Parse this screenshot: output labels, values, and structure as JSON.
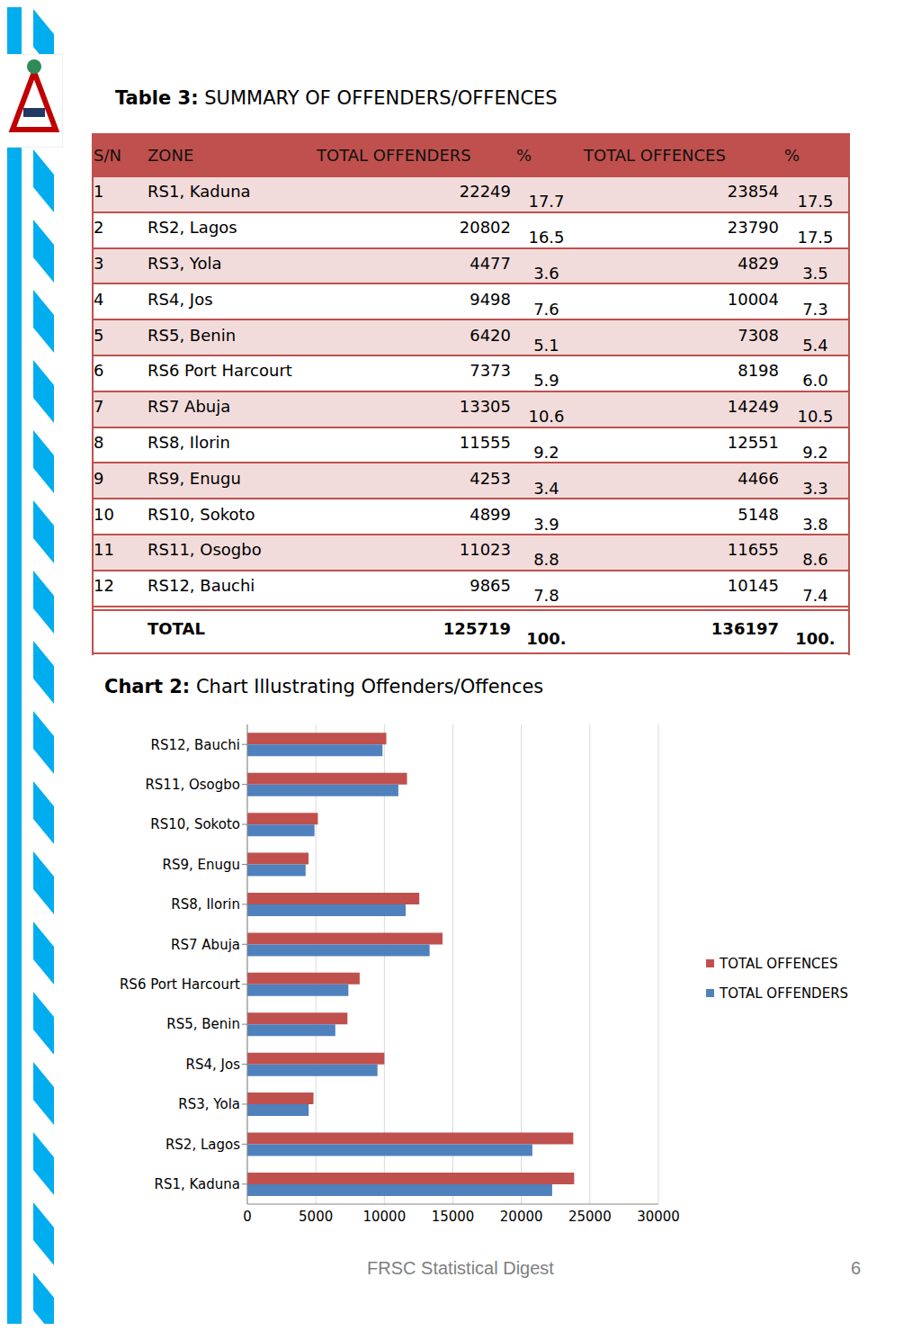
{
  "header": {
    "label": "Table 3:",
    "title": "SUMMARY OF OFFENDERS/OFFENCES"
  },
  "table": {
    "columns": [
      "S/N",
      "ZONE",
      "TOTAL OFFENDERS",
      "%",
      "TOTAL OFFENCES",
      "%"
    ],
    "rows": [
      [
        1,
        "RS1, Kaduna",
        22249,
        "17.7",
        23854,
        "17.5"
      ],
      [
        2,
        "RS2, Lagos",
        20802,
        "16.5",
        23790,
        "17.5"
      ],
      [
        3,
        "RS3, Yola",
        4477,
        "3.6",
        4829,
        "3.5"
      ],
      [
        4,
        "RS4, Jos",
        9498,
        "7.6",
        10004,
        "7.3"
      ],
      [
        5,
        "RS5, Benin",
        6420,
        "5.1",
        7308,
        "5.4"
      ],
      [
        6,
        "RS6 Port Harcourt",
        7373,
        "5.9",
        8198,
        "6.0"
      ],
      [
        7,
        "RS7 Abuja",
        13305,
        "10.6",
        14249,
        "10.5"
      ],
      [
        8,
        "RS8, Ilorin",
        11555,
        "9.2",
        12551,
        "9.2"
      ],
      [
        9,
        "RS9, Enugu",
        4253,
        "3.4",
        4466,
        "3.3"
      ],
      [
        10,
        "RS10, Sokoto",
        4899,
        "3.9",
        5148,
        "3.8"
      ],
      [
        11,
        "RS11, Osogbo",
        11023,
        "8.8",
        11655,
        "8.6"
      ],
      [
        12,
        "RS12, Bauchi",
        9865,
        "7.8",
        10145,
        "7.4"
      ]
    ],
    "total": [
      "",
      "TOTAL",
      125719,
      "100.",
      136197,
      "100."
    ]
  },
  "chart_data": {
    "type": "bar",
    "label": "Chart 2:",
    "title": "Chart Illustrating Offenders/Offences",
    "orientation": "horizontal",
    "categories": [
      "RS1, Kaduna",
      "RS2, Lagos",
      "RS3, Yola",
      "RS4, Jos",
      "RS5, Benin",
      "RS6 Port Harcourt",
      "RS7 Abuja",
      "RS8, Ilorin",
      "RS9, Enugu",
      "RS10, Sokoto",
      "RS11, Osogbo",
      "RS12, Bauchi"
    ],
    "series": [
      {
        "name": "TOTAL OFFENCES",
        "color": "#c0504d",
        "values": [
          23854,
          23790,
          4829,
          10004,
          7308,
          8198,
          14249,
          12551,
          4466,
          5148,
          11655,
          10145
        ]
      },
      {
        "name": "TOTAL OFFENDERS",
        "color": "#4f81bd",
        "values": [
          22249,
          20802,
          4477,
          9498,
          6420,
          7373,
          13305,
          11555,
          4253,
          4899,
          11023,
          9865
        ]
      }
    ],
    "xlim": [
      0,
      30000
    ],
    "xticks": [
      0,
      5000,
      10000,
      15000,
      20000,
      25000,
      30000
    ],
    "grid": true,
    "legend": "right"
  },
  "footer": {
    "text": "FRSC Statistical Digest",
    "page": 6
  }
}
